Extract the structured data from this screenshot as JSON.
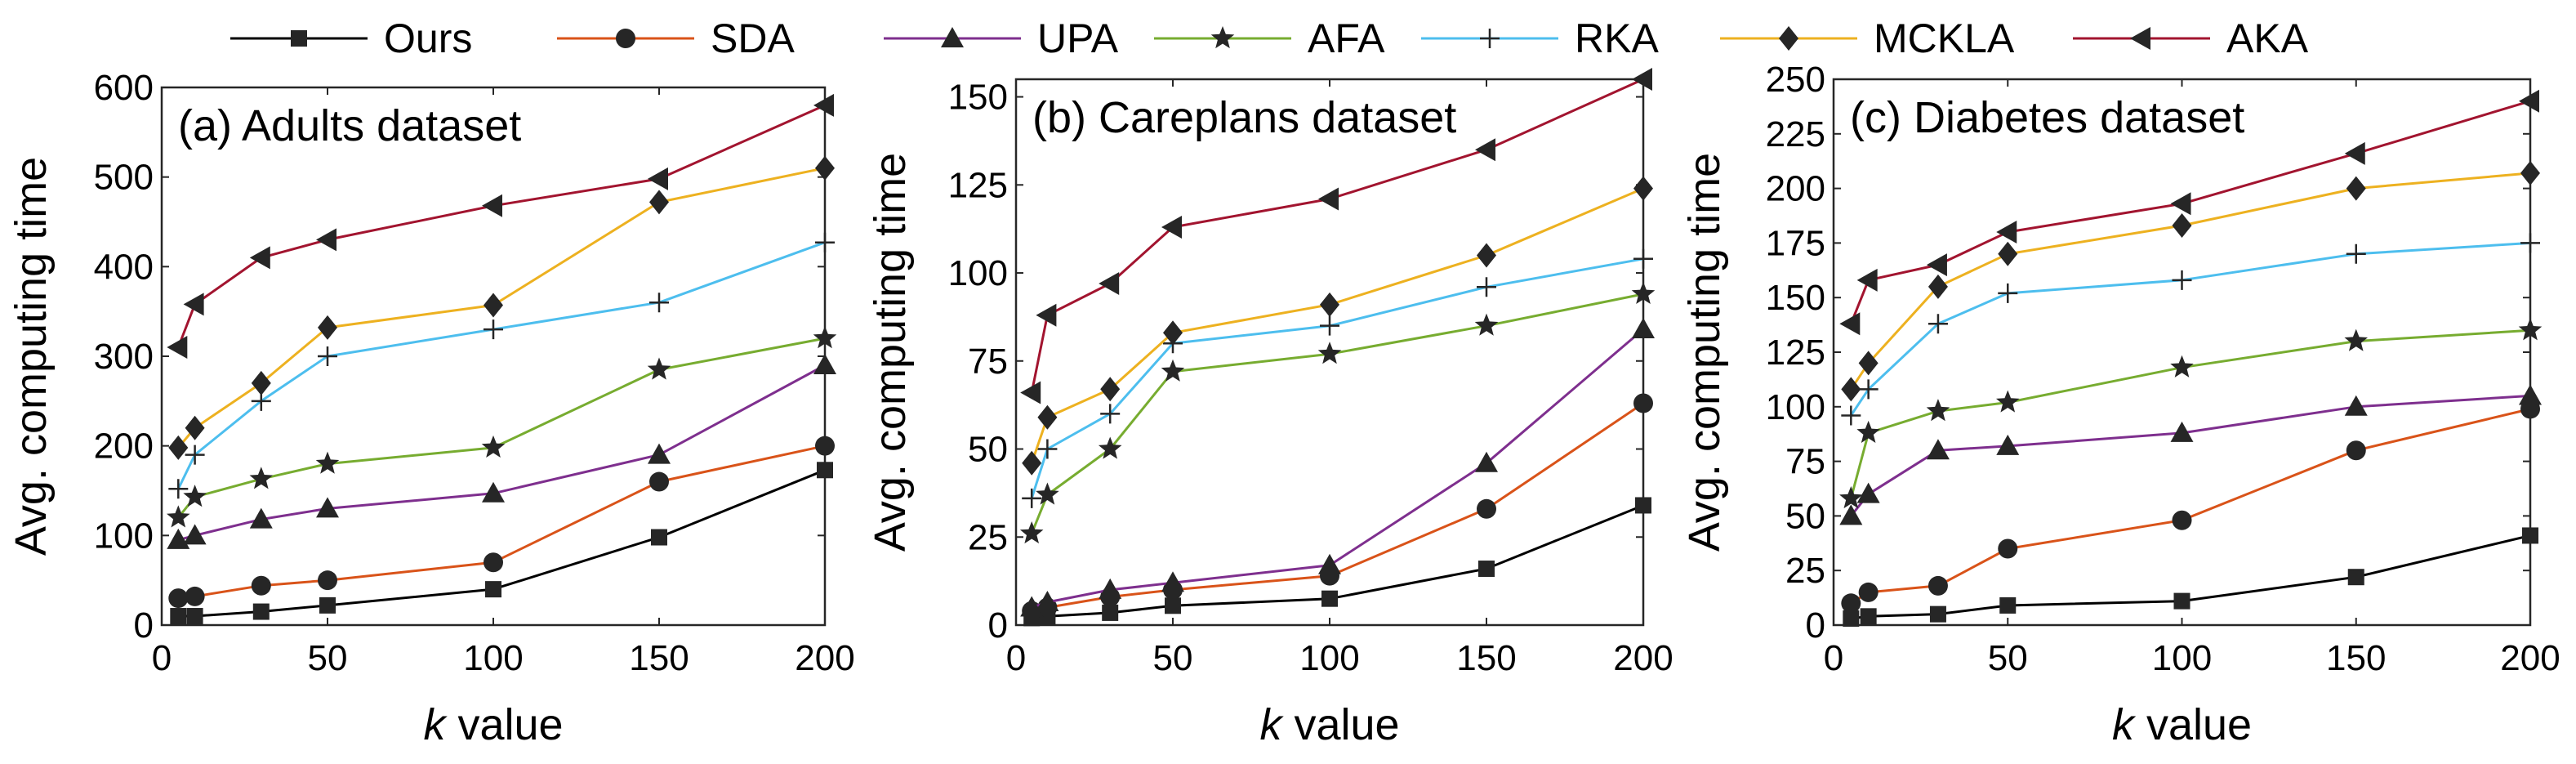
{
  "legend": {
    "entries": [
      {
        "name": "Ours",
        "color": "#000000",
        "marker": "square"
      },
      {
        "name": "SDA",
        "color": "#D95319",
        "marker": "circle"
      },
      {
        "name": "UPA",
        "color": "#7E2F8E",
        "marker": "triangle-up"
      },
      {
        "name": "AFA",
        "color": "#77AC30",
        "marker": "star"
      },
      {
        "name": "RKA",
        "color": "#4DBEEE",
        "marker": "plus"
      },
      {
        "name": "MCKLA",
        "color": "#EDB120",
        "marker": "diamond"
      },
      {
        "name": "AKA",
        "color": "#A2142F",
        "marker": "triangle-left"
      }
    ],
    "placement": "top"
  },
  "chart_data": [
    {
      "type": "line",
      "title": "(a) Adults dataset",
      "xlabel_italic": "k",
      "xlabel_rest": " value",
      "ylabel": "Avg. computing time",
      "x": [
        5,
        10,
        30,
        50,
        100,
        150,
        200
      ],
      "xlim": [
        0,
        200
      ],
      "ylim": [
        0,
        600
      ],
      "xticks": [
        0,
        50,
        100,
        150,
        200
      ],
      "yticks": [
        0,
        100,
        200,
        300,
        400,
        500,
        600
      ],
      "grid": false,
      "series": [
        {
          "name": "Ours",
          "values": [
            10,
            10,
            15,
            22,
            40,
            98,
            173
          ]
        },
        {
          "name": "SDA",
          "values": [
            30,
            32,
            44,
            50,
            70,
            160,
            200
          ]
        },
        {
          "name": "UPA",
          "values": [
            95,
            100,
            118,
            130,
            147,
            190,
            290
          ]
        },
        {
          "name": "AFA",
          "values": [
            120,
            143,
            163,
            180,
            198,
            285,
            320
          ]
        },
        {
          "name": "RKA",
          "values": [
            152,
            190,
            250,
            300,
            330,
            360,
            427
          ]
        },
        {
          "name": "MCKLA",
          "values": [
            198,
            220,
            270,
            332,
            357,
            472,
            510
          ]
        },
        {
          "name": "AKA",
          "values": [
            310,
            358,
            410,
            430,
            468,
            498,
            580
          ]
        }
      ]
    },
    {
      "type": "line",
      "title": "(b) Careplans dataset",
      "xlabel_italic": "k",
      "xlabel_rest": " value",
      "ylabel": "Avg. computing time",
      "x": [
        5,
        10,
        30,
        50,
        100,
        150,
        200
      ],
      "xlim": [
        0,
        200
      ],
      "ylim": [
        0,
        155
      ],
      "xticks": [
        0,
        50,
        100,
        150,
        200
      ],
      "yticks": [
        0,
        25,
        50,
        75,
        100,
        125,
        150
      ],
      "grid": false,
      "series": [
        {
          "name": "Ours",
          "values": [
            2,
            2.5,
            3.5,
            5.5,
            7.5,
            16,
            34
          ]
        },
        {
          "name": "SDA",
          "values": [
            4,
            5,
            8,
            10,
            14,
            33,
            63
          ]
        },
        {
          "name": "UPA",
          "values": [
            5,
            6.5,
            10,
            12,
            17,
            46,
            84
          ]
        },
        {
          "name": "AFA",
          "values": [
            26,
            37,
            50,
            72,
            77,
            85,
            94
          ]
        },
        {
          "name": "RKA",
          "values": [
            36,
            50,
            60,
            80,
            85,
            96,
            104
          ]
        },
        {
          "name": "MCKLA",
          "values": [
            46,
            59,
            67,
            83,
            91,
            105,
            124
          ]
        },
        {
          "name": "AKA",
          "values": [
            66,
            88,
            97,
            113,
            121,
            135,
            155
          ]
        }
      ]
    },
    {
      "type": "line",
      "title": "(c) Diabetes dataset",
      "xlabel_italic": "k",
      "xlabel_rest": " value",
      "ylabel": "Avg. computing time",
      "x": [
        5,
        10,
        30,
        50,
        100,
        150,
        200
      ],
      "xlim": [
        0,
        200
      ],
      "ylim": [
        0,
        250
      ],
      "xticks": [
        0,
        50,
        100,
        150,
        200
      ],
      "yticks": [
        0,
        25,
        50,
        75,
        100,
        125,
        150,
        175,
        200,
        225,
        250
      ],
      "grid": false,
      "series": [
        {
          "name": "Ours",
          "values": [
            3,
            4,
            5,
            9,
            11,
            22,
            41
          ]
        },
        {
          "name": "SDA",
          "values": [
            10,
            15,
            18,
            35,
            48,
            80,
            99
          ]
        },
        {
          "name": "UPA",
          "values": [
            50,
            60,
            80,
            82,
            88,
            100,
            105
          ]
        },
        {
          "name": "AFA",
          "values": [
            58,
            88,
            98,
            102,
            118,
            130,
            135
          ]
        },
        {
          "name": "RKA",
          "values": [
            96,
            108,
            138,
            152,
            158,
            170,
            175
          ]
        },
        {
          "name": "MCKLA",
          "values": [
            108,
            120,
            155,
            170,
            183,
            200,
            207
          ]
        },
        {
          "name": "AKA",
          "values": [
            138,
            158,
            165,
            180,
            193,
            216,
            240
          ]
        }
      ]
    }
  ]
}
